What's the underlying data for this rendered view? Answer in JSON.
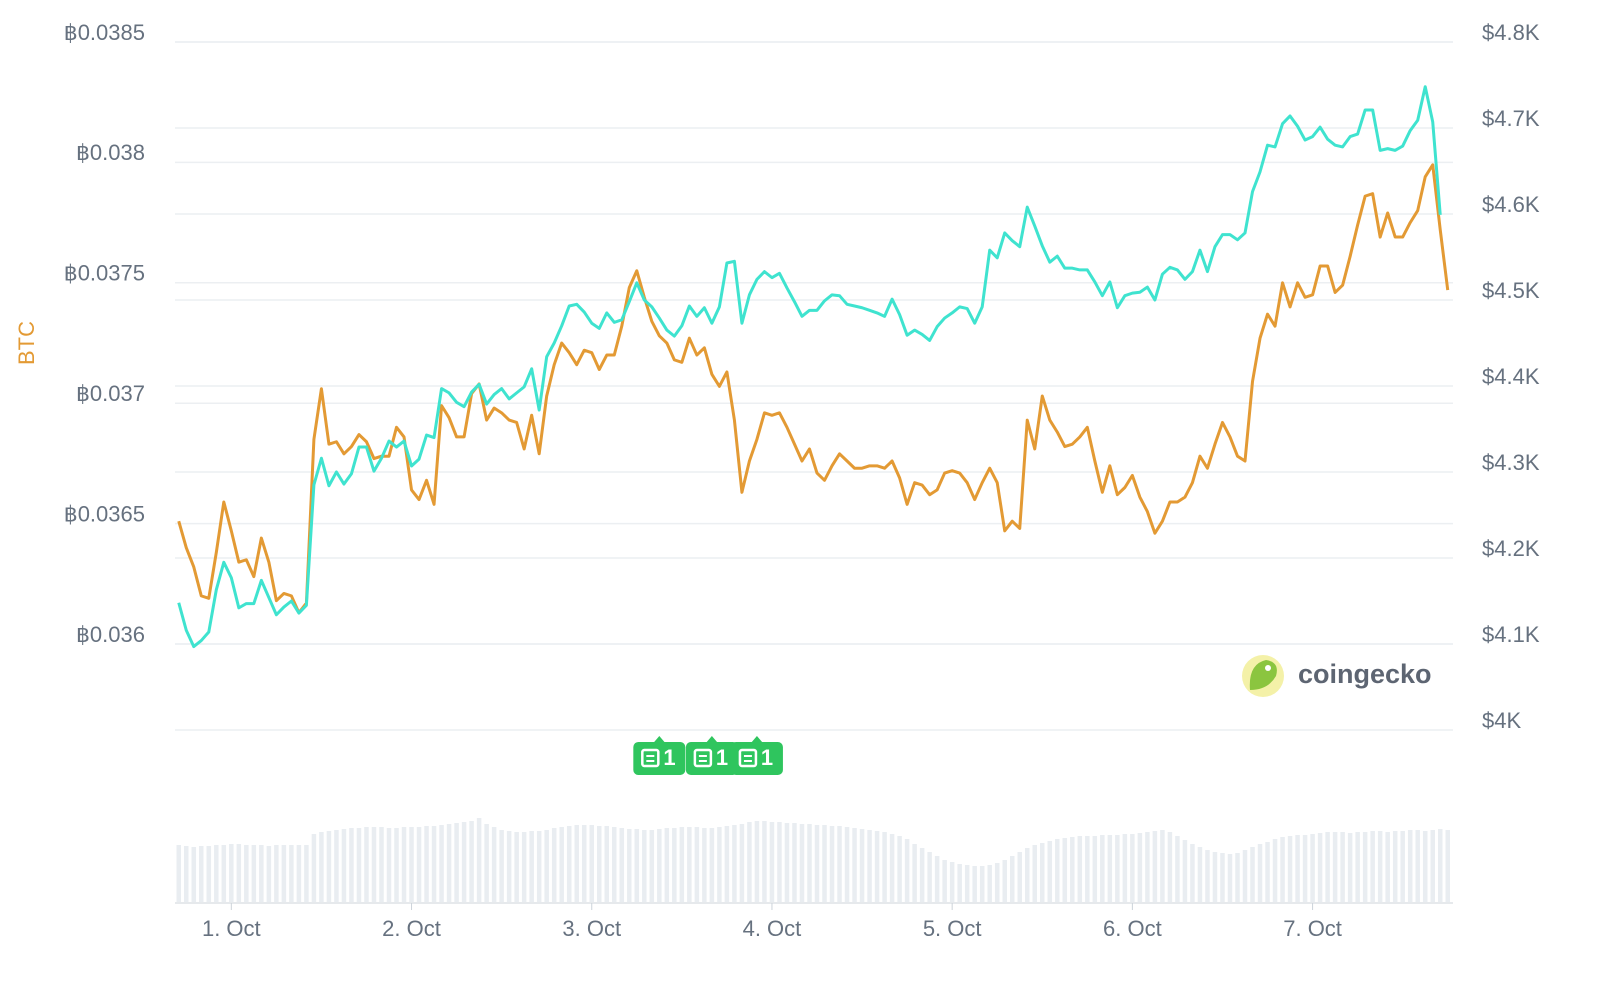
{
  "chart_data": {
    "type": "line",
    "y_label": "BTC",
    "y_label_color": "#e39a34",
    "x": [
      -7,
      -6,
      -5,
      -4,
      -3,
      -2,
      -1,
      0,
      1,
      2,
      3,
      4,
      5,
      6,
      7,
      8,
      9,
      10,
      11,
      12,
      13,
      14,
      15,
      16,
      17,
      18,
      19,
      20,
      21,
      22,
      23,
      24,
      25,
      26,
      27,
      28,
      29,
      30,
      31,
      32,
      33,
      34,
      35,
      36,
      37,
      38,
      39,
      40,
      41,
      42,
      43,
      44,
      45,
      46,
      47,
      48,
      49,
      50,
      51,
      52,
      53,
      54,
      55,
      56,
      57,
      58,
      59,
      60,
      61,
      62,
      63,
      64,
      65,
      66,
      67,
      68,
      69,
      70,
      71,
      72,
      73,
      74,
      75,
      76,
      77,
      78,
      79,
      80,
      81,
      82,
      83,
      84,
      85,
      86,
      87,
      88,
      89,
      90,
      91,
      92,
      93,
      94,
      95,
      96,
      97,
      98,
      99,
      100,
      101,
      102,
      103,
      104,
      105,
      106,
      107,
      108,
      109,
      110,
      111,
      112,
      113,
      114,
      115,
      116,
      117,
      118,
      119,
      120,
      121,
      122,
      123,
      124,
      125,
      126,
      127,
      128,
      129,
      130,
      131,
      132,
      133,
      134,
      135,
      136,
      137,
      138,
      139,
      140,
      141,
      142,
      143,
      144,
      145,
      146,
      147,
      148,
      149,
      150,
      151,
      152,
      153,
      154,
      155,
      156,
      157,
      158,
      159,
      160,
      161,
      162
    ],
    "xlim": [
      -7.5,
      162.7
    ],
    "xticks": [
      {
        "value": 0,
        "label": "1. Oct"
      },
      {
        "value": 24,
        "label": "2. Oct"
      },
      {
        "value": 48,
        "label": "3. Oct"
      },
      {
        "value": 72,
        "label": "4. Oct"
      },
      {
        "value": 96,
        "label": "5. Oct"
      },
      {
        "value": 120,
        "label": "6. Oct"
      },
      {
        "value": 144,
        "label": "7. Oct"
      }
    ],
    "ylim": [
      0.035643,
      0.0385
    ],
    "yticks": [
      {
        "value": 0.0385,
        "label": "฿0.0385"
      },
      {
        "value": 0.038,
        "label": "฿0.038"
      },
      {
        "value": 0.0375,
        "label": "฿0.0375"
      },
      {
        "value": 0.037,
        "label": "฿0.037"
      },
      {
        "value": 0.0365,
        "label": "฿0.0365"
      },
      {
        "value": 0.036,
        "label": "฿0.036"
      }
    ],
    "y2lim": [
      4000,
      4800
    ],
    "y2ticks": [
      {
        "value": 4800,
        "label": "$4.8K"
      },
      {
        "value": 4700,
        "label": "$4.7K"
      },
      {
        "value": 4600,
        "label": "$4.6K"
      },
      {
        "value": 4500,
        "label": "$4.5K"
      },
      {
        "value": 4400,
        "label": "$4.4K"
      },
      {
        "value": 4300,
        "label": "$4.3K"
      },
      {
        "value": 4200,
        "label": "$4.2K"
      },
      {
        "value": 4100,
        "label": "$4.1K"
      },
      {
        "value": 4000,
        "label": "$4K"
      }
    ],
    "grid": true,
    "series": [
      {
        "color": "#e39a34",
        "axis": "y",
        "values": [
          0.03651,
          0.0364,
          0.03632,
          0.0362,
          0.03619,
          0.03638,
          0.03659,
          0.03647,
          0.03634,
          0.03635,
          0.03628,
          0.03644,
          0.03634,
          0.03618,
          0.03621,
          0.0362,
          0.03613,
          0.03617,
          0.03685,
          0.03706,
          0.03683,
          0.03684,
          0.03679,
          0.03682,
          0.03687,
          0.03684,
          0.03677,
          0.03678,
          0.03678,
          0.0369,
          0.03686,
          0.03664,
          0.0366,
          0.03668,
          0.03658,
          0.03699,
          0.03694,
          0.03686,
          0.03686,
          0.03704,
          0.03708,
          0.03693,
          0.03698,
          0.03696,
          0.03693,
          0.03692,
          0.03681,
          0.03695,
          0.03679,
          0.03703,
          0.03716,
          0.03725,
          0.03721,
          0.03716,
          0.03722,
          0.03721,
          0.03714,
          0.0372,
          0.0372,
          0.03732,
          0.03748,
          0.03755,
          0.03744,
          0.03734,
          0.03728,
          0.03725,
          0.03718,
          0.03717,
          0.03727,
          0.0372,
          0.03723,
          0.03712,
          0.03707,
          0.03713,
          0.03693,
          0.03663,
          0.03676,
          0.03685,
          0.03696,
          0.03695,
          0.03696,
          0.0369,
          0.03683,
          0.03676,
          0.03681,
          0.03671,
          0.03668,
          0.03674,
          0.03679,
          0.03676,
          0.03673,
          0.03673,
          0.03674,
          0.03674,
          0.03673,
          0.03676,
          0.03669,
          0.03658,
          0.03667,
          0.03666,
          0.03662,
          0.03664,
          0.03671,
          0.03672,
          0.03671,
          0.03667,
          0.0366,
          0.03667,
          0.03673,
          0.03667,
          0.03647,
          0.03651,
          0.03648,
          0.03693,
          0.03681,
          0.03703,
          0.03693,
          0.03688,
          0.03682,
          0.03683,
          0.03686,
          0.0369,
          0.03676,
          0.03663,
          0.03674,
          0.03662,
          0.03665,
          0.0367,
          0.03661,
          0.03655,
          0.03646,
          0.03651,
          0.03659,
          0.03659,
          0.03661,
          0.03667,
          0.03678,
          0.03673,
          0.03683,
          0.03692,
          0.03686,
          0.03678,
          0.03676,
          0.03709,
          0.03727,
          0.03737,
          0.03732,
          0.0375,
          0.0374,
          0.0375,
          0.03744,
          0.03745,
          0.03757,
          0.03757,
          0.03746,
          0.03749,
          0.03761,
          0.03774,
          0.03786,
          0.03787,
          0.03769,
          0.03779,
          0.03769,
          0.03769,
          0.03775,
          0.0378,
          0.03794,
          0.03799,
          0.03772,
          0.03747
        ]
      },
      {
        "color": "#3fe3cf",
        "axis": "y2",
        "values": [
          4148,
          4116,
          4097,
          4104,
          4114,
          4163,
          4195,
          4177,
          4142,
          4147,
          4147,
          4174,
          4154,
          4134,
          4143,
          4150,
          4136,
          4145,
          4285,
          4316,
          4284,
          4300,
          4286,
          4298,
          4329,
          4329,
          4301,
          4316,
          4336,
          4329,
          4336,
          4307,
          4315,
          4343,
          4340,
          4397,
          4392,
          4381,
          4376,
          4393,
          4402,
          4379,
          4390,
          4397,
          4385,
          4392,
          4399,
          4420,
          4372,
          4434,
          4450,
          4470,
          4493,
          4495,
          4486,
          4473,
          4467,
          4485,
          4474,
          4477,
          4498,
          4520,
          4500,
          4492,
          4479,
          4465,
          4458,
          4470,
          4493,
          4481,
          4491,
          4473,
          4492,
          4543,
          4545,
          4473,
          4506,
          4524,
          4533,
          4526,
          4531,
          4514,
          4498,
          4481,
          4488,
          4488,
          4499,
          4506,
          4505,
          4495,
          4493,
          4491,
          4488,
          4485,
          4481,
          4501,
          4483,
          4459,
          4465,
          4460,
          4453,
          4469,
          4479,
          4485,
          4492,
          4490,
          4473,
          4492,
          4558,
          4549,
          4578,
          4569,
          4562,
          4608,
          4586,
          4563,
          4544,
          4551,
          4537,
          4537,
          4535,
          4535,
          4521,
          4505,
          4521,
          4491,
          4505,
          4508,
          4509,
          4515,
          4500,
          4530,
          4538,
          4535,
          4524,
          4533,
          4558,
          4533,
          4562,
          4576,
          4576,
          4570,
          4578,
          4626,
          4649,
          4680,
          4678,
          4705,
          4714,
          4702,
          4686,
          4690,
          4701,
          4687,
          4680,
          4678,
          4690,
          4693,
          4721,
          4721,
          4674,
          4676,
          4674,
          4679,
          4697,
          4709,
          4748,
          4707,
          4599,
          null
        ]
      }
    ],
    "volume": [
      57,
      56,
      55,
      56,
      56,
      57,
      57,
      58,
      58,
      57,
      57,
      57,
      56,
      57,
      57,
      57,
      57,
      57,
      68,
      70,
      71,
      72,
      73,
      74,
      74,
      75,
      75,
      75,
      74,
      74,
      75,
      75,
      75,
      76,
      76,
      77,
      78,
      79,
      80,
      81,
      84,
      78,
      75,
      72,
      71,
      70,
      70,
      71,
      71,
      72,
      74,
      75,
      76,
      77,
      77,
      77,
      76,
      76,
      75,
      74,
      73,
      73,
      72,
      72,
      73,
      74,
      74,
      75,
      75,
      75,
      74,
      74,
      75,
      76,
      77,
      78,
      80,
      81,
      81,
      80,
      80,
      79,
      79,
      78,
      78,
      77,
      77,
      76,
      76,
      75,
      74,
      73,
      72,
      71,
      70,
      68,
      66,
      63,
      58,
      54,
      50,
      46,
      42,
      40,
      38,
      37,
      36,
      36,
      37,
      39,
      42,
      46,
      50,
      54,
      57,
      59,
      61,
      63,
      64,
      65,
      66,
      66,
      66,
      67,
      67,
      67,
      68,
      68,
      69,
      70,
      71,
      72,
      70,
      66,
      62,
      58,
      55,
      52,
      50,
      49,
      48,
      49,
      52,
      55,
      58,
      60,
      63,
      65,
      66,
      67,
      67,
      68,
      69,
      70,
      70,
      70,
      69,
      70,
      70,
      71,
      71,
      70,
      71,
      71,
      72,
      72,
      71,
      72,
      73,
      72
    ],
    "volume_color": "#e9edf1",
    "news": {
      "x": [
        57,
        64,
        70
      ],
      "counts": [
        1,
        1,
        1
      ],
      "color": "#2fc55e"
    }
  },
  "logo": "coingecko"
}
